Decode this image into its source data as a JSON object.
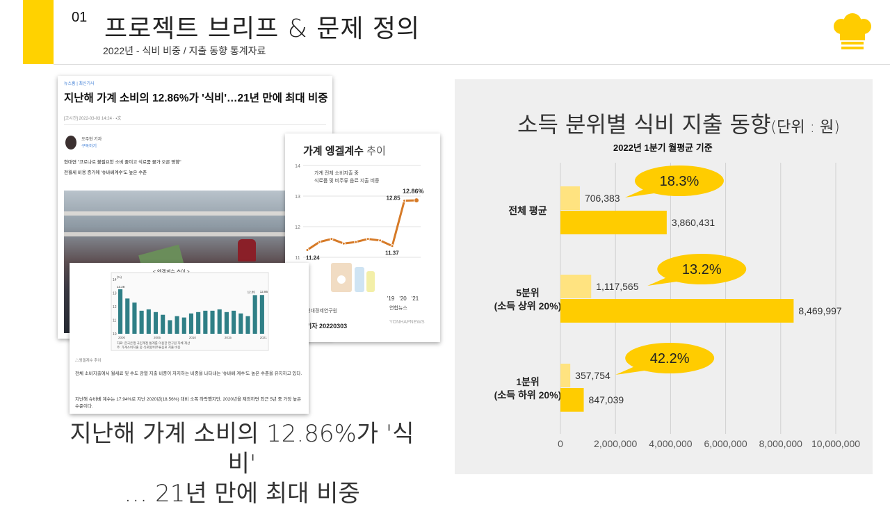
{
  "slide": {
    "number": "01",
    "title": "프로젝트 브리프 & 문제 정의",
    "subtitle": "2022년 - 식비 비중 / 지출 동향 통계자료",
    "icon": "chef-hat-icon",
    "accent_color": "#FFD200"
  },
  "article_main": {
    "breadcrumb": "뉴스홈 | 최신기사",
    "headline": "지난해 가계 소비의 12.86%가 '식비'…21년 만에 최대 비중",
    "meta": "[고시간] 2022-03-03 14:24 ·  ▪文",
    "reporter": "오주현 기자",
    "reporter_tag": "구독하기",
    "lead1": "현대연 \"코로나로 불필요한 소비 줄이고 식료품 물가 오른 영향\"",
    "lead2": "전월세 비용 증가에 '슈바베계수'도 높은 수준"
  },
  "article_chart": {
    "title_bold": "가계 엥겔계수",
    "title_light": "추이",
    "desc1": "가계 전체 소비지출 중",
    "desc2": "식료품 및 비주류 음료 지출 비중",
    "y_ticks": [
      "14",
      "13",
      "12",
      "11"
    ],
    "points": [
      11.24,
      11.5,
      11.6,
      11.45,
      11.5,
      11.6,
      11.55,
      11.37,
      12.85,
      12.86
    ],
    "labels": {
      "start": "11.24",
      "low": "11.37",
      "prev": "12.85",
      "last": "12.86%"
    },
    "x_ticks": [
      "'19",
      "'20",
      "'21"
    ],
    "source": "현대경제연구원",
    "reporter": "기자  20220303",
    "logo": "연합뉴스",
    "watermark": "YONHAPNEWS"
  },
  "article_bar": {
    "title": "< 엥겔계수 추이 >",
    "unit": "(%)",
    "values": [
      13.28,
      12.6,
      12.3,
      11.7,
      11.8,
      11.6,
      11.4,
      11.0,
      11.3,
      11.2,
      11.5,
      11.6,
      11.7,
      11.7,
      11.8,
      11.6,
      11.7,
      11.5,
      11.3,
      12.85,
      12.86
    ],
    "y_ticks": [
      "14",
      "13",
      "12",
      "11",
      "10"
    ],
    "x_ticks": [
      "2000",
      "2005",
      "2010",
      "2015",
      "2021"
    ],
    "val_labels": {
      "first": "13.28",
      "prev": "12.85",
      "last": "12.86"
    },
    "bar_color": "#2f7f86",
    "note1": "자료: 한국은행 국민계정 통계를 이용한 연구원 자체 계산",
    "note2": "주: 가계소비지출 중 식료품/비주류음료 지출 비중",
    "caption": "△엥겔계수 추이",
    "para1": "전체 소비지출에서 월세료 및 수도 광열 지출 비중이 차지하는 비중을 나타내는 '슈바베 계수'도 높은 수준을 유지하고 있다.",
    "para2": "지난해 슈바베 계수는 17.94%로 지난 2020년(18.56%) 대비 소폭 하락했지만, 2020년을 제외하면 최근 5년 중 가장 높은 수준이다."
  },
  "caption": {
    "line1": "지난해 가계 소비의 12.86%가 '식",
    "line2": "비'",
    "line3": "… 21년 만에 최대 비중"
  },
  "chart_title": {
    "main": "소득 분위별 식비 지출 동향",
    "unit": "(단위 : 원)",
    "subtitle": "2022년 1분기 월평균 기준"
  },
  "chart_data": {
    "type": "bar",
    "orientation": "horizontal",
    "categories": [
      "전체 평균",
      "5분위\n(소득 상위 20%)",
      "1분위\n(소득 하위 20%)"
    ],
    "series": [
      {
        "values": [
          706383,
          1117565,
          357754
        ],
        "color": "#FFE380"
      },
      {
        "values": [
          3860431,
          8469997,
          847039
        ],
        "color": "#FFCC00"
      }
    ],
    "data_labels": [
      [
        "706,383",
        "1,117,565",
        "357,754"
      ],
      [
        "3,860,431",
        "8,469,997",
        "847,039"
      ]
    ],
    "callouts": [
      "18.3%",
      "13.2%",
      "42.2%"
    ],
    "xlim": [
      0,
      10000000
    ],
    "x_ticks": [
      "0",
      "2,000,000",
      "4,000,000",
      "6,000,000",
      "8,000,000",
      "10,000,000"
    ],
    "grid": true,
    "colors": {
      "callout": "#FFCC00",
      "grid": "#d0d0d0"
    }
  }
}
